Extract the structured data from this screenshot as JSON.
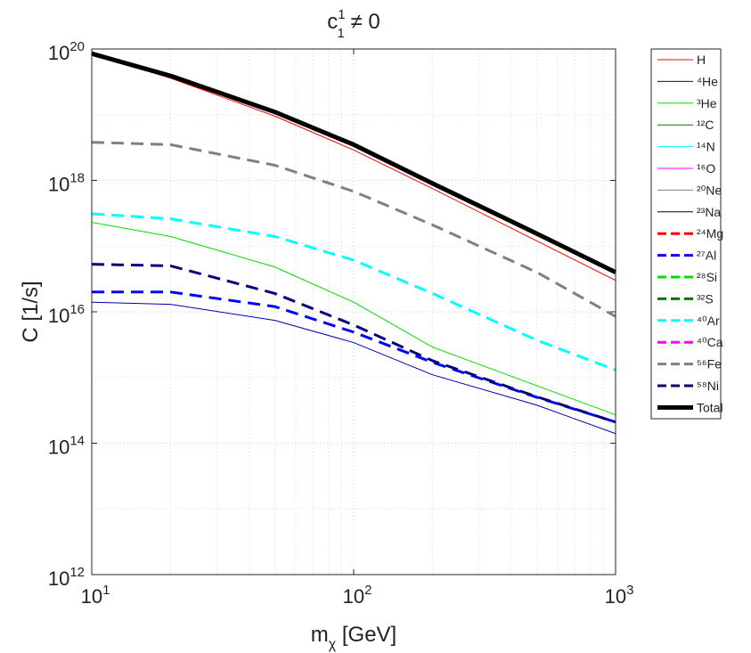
{
  "chart_data": {
    "type": "line",
    "title": {
      "base": "c",
      "sup": "1",
      "sub": "1",
      "rest": " ≠ 0"
    },
    "xlabel": {
      "base": "m",
      "sub": "χ",
      "rest": " [GeV]"
    },
    "ylabel": "C [1/s]",
    "log_x": true,
    "log_y": true,
    "grid": true,
    "legend": "outside-right",
    "x": [
      10,
      20,
      50,
      100,
      200,
      500,
      1000
    ],
    "xlim": [
      10,
      1000
    ],
    "ylim": [
      1000000000000.0,
      1e+20
    ],
    "xticks": [
      {
        "value": 10,
        "label": "10",
        "exp": "1"
      },
      {
        "value": 100,
        "label": "10",
        "exp": "2"
      },
      {
        "value": 1000,
        "label": "10",
        "exp": "3"
      }
    ],
    "yticks": [
      {
        "value": 1000000000000.0,
        "label": "10",
        "exp": "12"
      },
      {
        "value": 100000000000000.0,
        "label": "10",
        "exp": "14"
      },
      {
        "value": 1e+16,
        "label": "10",
        "exp": "16"
      },
      {
        "value": 1e+18,
        "label": "10",
        "exp": "18"
      },
      {
        "value": 1e+20,
        "label": "10",
        "exp": "20"
      }
    ],
    "series": [
      {
        "name": "H",
        "color": "#ff0000",
        "style": "solid",
        "width": 1,
        "values": [
          8.5e+19,
          3.6e+19,
          9.5e+18,
          2.9e+18,
          7.5e+17,
          1.2e+17,
          3e+16
        ]
      },
      {
        "name": "⁴He",
        "color": "#0000aa",
        "style": "solid",
        "width": 1,
        "values": [
          1.4e+16,
          1.3e+16,
          7400000000000000.0,
          3400000000000000.0,
          1100000000000000.0,
          380000000000000.0,
          140000000000000.0
        ]
      },
      {
        "name": "³He",
        "color": "#00dd00",
        "style": "solid",
        "width": 1,
        "values": [
          2.3e+17,
          1.4e+17,
          4.8e+16,
          1.4e+16,
          2900000000000000.0,
          750000000000000.0,
          270000000000000.0
        ]
      },
      {
        "name": "¹²C",
        "color": "#007700",
        "style": "solid",
        "width": 1,
        "values": [
          null,
          null,
          null,
          null,
          null,
          null,
          null
        ]
      },
      {
        "name": "¹⁴N",
        "color": "#00ffff",
        "style": "solid",
        "width": 1,
        "values": [
          null,
          null,
          null,
          null,
          null,
          null,
          null
        ]
      },
      {
        "name": "¹⁶O",
        "color": "#ff00ff",
        "style": "solid",
        "width": 1,
        "values": [
          null,
          null,
          null,
          null,
          null,
          null,
          null
        ]
      },
      {
        "name": "²⁰Ne",
        "color": "#808080",
        "style": "solid",
        "width": 1,
        "values": [
          null,
          null,
          null,
          null,
          null,
          null,
          null
        ]
      },
      {
        "name": "²³Na",
        "color": "#000000",
        "style": "solid",
        "width": 1,
        "values": [
          null,
          null,
          null,
          null,
          null,
          null,
          null
        ]
      },
      {
        "name": "²⁴Mg",
        "color": "#ff0000",
        "style": "dashed",
        "width": 3,
        "values": [
          null,
          null,
          null,
          null,
          null,
          null,
          null
        ]
      },
      {
        "name": "²⁷Al",
        "color": "#0000ff",
        "style": "dashed",
        "width": 3,
        "values": [
          2e+16,
          2e+16,
          1.2e+16,
          4900000000000000.0,
          1700000000000000.0,
          500000000000000.0,
          210000000000000.0
        ]
      },
      {
        "name": "²⁸Si",
        "color": "#00dd00",
        "style": "dashed",
        "width": 3,
        "values": [
          null,
          null,
          null,
          null,
          null,
          null,
          null
        ]
      },
      {
        "name": "³²S",
        "color": "#007700",
        "style": "dashed",
        "width": 3,
        "values": [
          null,
          null,
          null,
          null,
          null,
          null,
          null
        ]
      },
      {
        "name": "⁴⁰Ar",
        "color": "#00ffff",
        "style": "dashed",
        "width": 3,
        "values": [
          3.1e+17,
          2.6e+17,
          1.4e+17,
          6.1e+16,
          1.9e+16,
          3700000000000000.0,
          1300000000000000.0
        ]
      },
      {
        "name": "⁴⁰Ca",
        "color": "#ff00ff",
        "style": "dashed",
        "width": 3,
        "values": [
          null,
          null,
          null,
          null,
          null,
          null,
          null
        ]
      },
      {
        "name": "⁵⁶Fe",
        "color": "#808080",
        "style": "dashed",
        "width": 3,
        "values": [
          3.8e+18,
          3.5e+18,
          1.7e+18,
          6.8e+17,
          2.1e+17,
          4e+16,
          8500000000000000.0
        ]
      },
      {
        "name": "⁵⁸Ni",
        "color": "#000080",
        "style": "dashed",
        "width": 3,
        "values": [
          5.3e+16,
          5e+16,
          1.9e+16,
          6300000000000000.0,
          1800000000000000.0,
          510000000000000.0,
          210000000000000.0
        ]
      },
      {
        "name": "Total",
        "color": "#000000",
        "style": "solid",
        "width": 5,
        "values": [
          8.5e+19,
          3.9e+19,
          1.1e+19,
          3.5e+18,
          9e+17,
          1.55e+17,
          4e+16
        ]
      }
    ]
  }
}
